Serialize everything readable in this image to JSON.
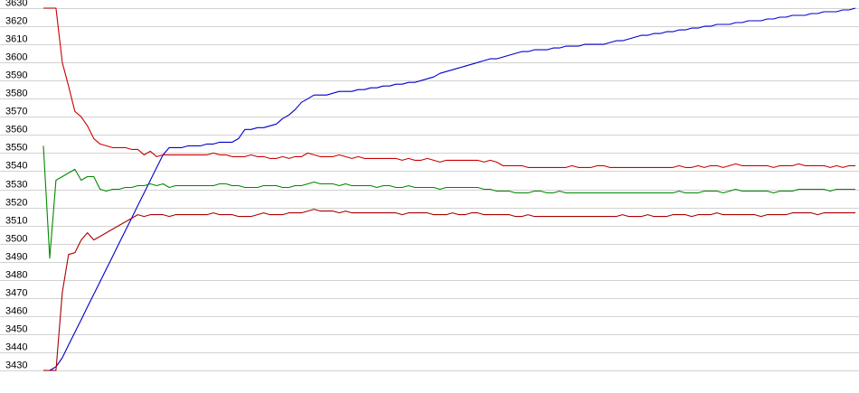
{
  "chart_data": {
    "type": "line",
    "title": "",
    "xlabel": "",
    "ylabel": "",
    "ylim": [
      3430,
      3630
    ],
    "yticks": [
      3630,
      3620,
      3610,
      3600,
      3590,
      3580,
      3570,
      3560,
      3550,
      3540,
      3530,
      3520,
      3510,
      3500,
      3490,
      3480,
      3470,
      3460,
      3450,
      3440,
      3430
    ],
    "grid": true,
    "legend": "none",
    "x_points": 130,
    "series": [
      {
        "color": "#0000cc",
        "values": [
          3430,
          3430,
          3432,
          3437,
          3444,
          3451,
          3458,
          3465,
          3472,
          3479,
          3486,
          3493,
          3500,
          3507,
          3514,
          3521,
          3528,
          3535,
          3542,
          3549,
          3553,
          3553,
          3553,
          3554,
          3554,
          3554,
          3555,
          3555,
          3556,
          3556,
          3556,
          3558,
          3563,
          3563,
          3564,
          3564,
          3565,
          3566,
          3569,
          3571,
          3574,
          3578,
          3580,
          3582,
          3582,
          3582,
          3583,
          3584,
          3584,
          3584,
          3585,
          3585,
          3586,
          3586,
          3587,
          3587,
          3588,
          3588,
          3589,
          3589,
          3590,
          3591,
          3592,
          3594,
          3595,
          3596,
          3597,
          3598,
          3599,
          3600,
          3601,
          3602,
          3602,
          3603,
          3604,
          3605,
          3606,
          3606,
          3607,
          3607,
          3607,
          3608,
          3608,
          3609,
          3609,
          3609,
          3610,
          3610,
          3610,
          3610,
          3611,
          3612,
          3612,
          3613,
          3614,
          3615,
          3615,
          3616,
          3616,
          3617,
          3617,
          3618,
          3618,
          3619,
          3619,
          3620,
          3620,
          3621,
          3621,
          3621,
          3622,
          3622,
          3623,
          3623,
          3623,
          3624,
          3624,
          3625,
          3625,
          3626,
          3626,
          3626,
          3627,
          3627,
          3628,
          3628,
          3628,
          3629,
          3629,
          3630
        ]
      },
      {
        "color": "#cc0000",
        "values": [
          3630,
          3630,
          3630,
          3600,
          3587,
          3573,
          3570,
          3565,
          3558,
          3555,
          3554,
          3553,
          3553,
          3553,
          3552,
          3552,
          3549,
          3551,
          3548,
          3549,
          3549,
          3549,
          3549,
          3549,
          3549,
          3549,
          3549,
          3550,
          3549,
          3549,
          3548,
          3548,
          3548,
          3549,
          3548,
          3548,
          3547,
          3547,
          3548,
          3547,
          3548,
          3548,
          3550,
          3549,
          3548,
          3548,
          3548,
          3549,
          3548,
          3547,
          3548,
          3547,
          3547,
          3547,
          3547,
          3547,
          3547,
          3546,
          3547,
          3546,
          3546,
          3547,
          3546,
          3545,
          3546,
          3546,
          3546,
          3546,
          3546,
          3546,
          3545,
          3546,
          3545,
          3543,
          3543,
          3543,
          3543,
          3542,
          3542,
          3542,
          3542,
          3542,
          3542,
          3542,
          3543,
          3542,
          3542,
          3542,
          3543,
          3543,
          3542,
          3542,
          3542,
          3542,
          3542,
          3542,
          3542,
          3542,
          3542,
          3542,
          3542,
          3543,
          3542,
          3542,
          3543,
          3542,
          3543,
          3543,
          3542,
          3543,
          3544,
          3543,
          3543,
          3543,
          3543,
          3543,
          3542,
          3543,
          3543,
          3543,
          3544,
          3543,
          3543,
          3543,
          3543,
          3542,
          3543,
          3542,
          3543,
          3543
        ]
      },
      {
        "color": "#008800",
        "values": [
          3554,
          3492,
          3535,
          3537,
          3539,
          3541,
          3535,
          3537,
          3537,
          3530,
          3529,
          3530,
          3530,
          3531,
          3531,
          3532,
          3532,
          3533,
          3532,
          3533,
          3531,
          3532,
          3532,
          3532,
          3532,
          3532,
          3532,
          3532,
          3533,
          3533,
          3532,
          3532,
          3531,
          3531,
          3531,
          3532,
          3532,
          3532,
          3531,
          3531,
          3532,
          3532,
          3533,
          3534,
          3533,
          3533,
          3533,
          3532,
          3533,
          3532,
          3532,
          3532,
          3532,
          3531,
          3532,
          3532,
          3531,
          3531,
          3532,
          3531,
          3531,
          3531,
          3531,
          3530,
          3531,
          3531,
          3531,
          3531,
          3531,
          3531,
          3530,
          3530,
          3529,
          3529,
          3529,
          3528,
          3528,
          3528,
          3529,
          3529,
          3528,
          3528,
          3529,
          3528,
          3528,
          3528,
          3528,
          3528,
          3528,
          3528,
          3528,
          3528,
          3528,
          3528,
          3528,
          3528,
          3528,
          3528,
          3528,
          3528,
          3528,
          3529,
          3528,
          3528,
          3528,
          3529,
          3529,
          3529,
          3528,
          3529,
          3530,
          3529,
          3529,
          3529,
          3529,
          3529,
          3528,
          3529,
          3529,
          3529,
          3530,
          3530,
          3530,
          3530,
          3530,
          3529,
          3530,
          3530,
          3530,
          3530
        ]
      },
      {
        "color": "#aa0000",
        "values": [
          3430,
          3430,
          3430,
          3473,
          3494,
          3495,
          3502,
          3506,
          3502,
          3504,
          3506,
          3508,
          3510,
          3512,
          3514,
          3516,
          3515,
          3516,
          3516,
          3516,
          3515,
          3516,
          3516,
          3516,
          3516,
          3516,
          3516,
          3517,
          3516,
          3516,
          3516,
          3515,
          3515,
          3515,
          3516,
          3517,
          3516,
          3516,
          3516,
          3517,
          3517,
          3517,
          3518,
          3519,
          3518,
          3518,
          3518,
          3517,
          3518,
          3517,
          3517,
          3517,
          3517,
          3517,
          3517,
          3517,
          3517,
          3516,
          3517,
          3517,
          3517,
          3517,
          3516,
          3516,
          3516,
          3517,
          3516,
          3516,
          3517,
          3517,
          3516,
          3516,
          3516,
          3516,
          3516,
          3515,
          3515,
          3516,
          3515,
          3515,
          3515,
          3515,
          3515,
          3515,
          3515,
          3515,
          3515,
          3515,
          3515,
          3515,
          3515,
          3515,
          3516,
          3515,
          3515,
          3515,
          3516,
          3515,
          3515,
          3515,
          3516,
          3516,
          3516,
          3515,
          3516,
          3516,
          3516,
          3517,
          3516,
          3516,
          3516,
          3516,
          3516,
          3516,
          3515,
          3516,
          3516,
          3516,
          3516,
          3517,
          3517,
          3517,
          3517,
          3516,
          3517,
          3517,
          3517,
          3517,
          3517,
          3517
        ]
      }
    ]
  }
}
